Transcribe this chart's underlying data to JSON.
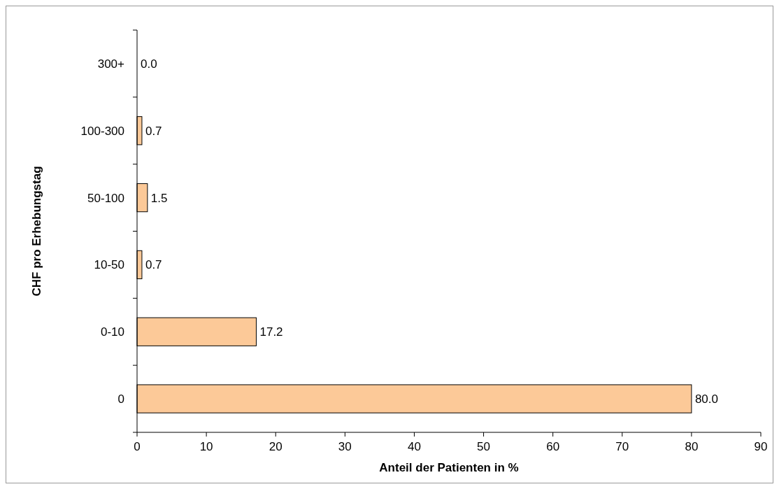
{
  "chart_data": {
    "type": "bar",
    "orientation": "horizontal",
    "xlabel": "Anteil der Patienten in %",
    "ylabel": "CHF pro Erhebungstag",
    "categories": [
      "300+",
      "100-300",
      "50-100",
      "10-50",
      "0-10",
      "0"
    ],
    "values": [
      0.0,
      0.7,
      1.5,
      0.7,
      17.2,
      80.0
    ],
    "value_labels": [
      "0.0",
      "0.7",
      "1.5",
      "0.7",
      "17.2",
      "80.0"
    ],
    "color": "#fcc998",
    "xlim": [
      0,
      90
    ],
    "xticks": [
      0,
      10,
      20,
      30,
      40,
      50,
      60,
      70,
      80,
      90
    ],
    "grid": false
  }
}
